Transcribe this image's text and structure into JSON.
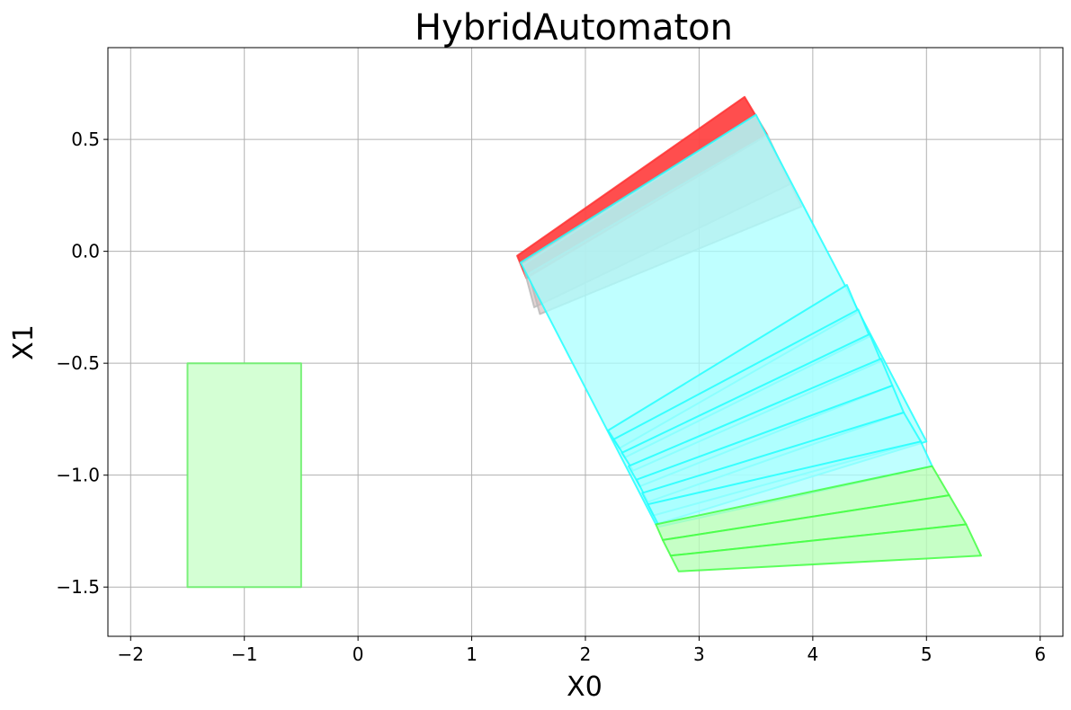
{
  "chart_data": {
    "type": "polygon",
    "title": "HybridAutomaton",
    "xlabel": "X0",
    "ylabel": "X1",
    "xlim": [
      -2.2,
      6.2
    ],
    "ylim": [
      -1.72,
      0.91
    ],
    "grid": true,
    "xticks": [
      -2,
      -1,
      0,
      1,
      2,
      3,
      4,
      5,
      6
    ],
    "xtick_labels": [
      "−2",
      "−1",
      "0",
      "1",
      "2",
      "3",
      "4",
      "5",
      "6"
    ],
    "yticks": [
      0.5,
      0.0,
      -0.5,
      -1.0,
      -1.5
    ],
    "ytick_labels": [
      "0.5",
      "0.0",
      "−0.5",
      "−1.0",
      "−1.5"
    ],
    "colors": {
      "initial": "#33cc33",
      "initial_fill": "#d4ffd4",
      "red": "#ff4444",
      "cyan": "#22ffff",
      "cyan_fill": "#aaffff",
      "green": "#44ff44"
    },
    "series": [
      {
        "role": "initial-set",
        "color": "#66ee66",
        "fill": "#d4ffd4",
        "fill_opacity": 1,
        "polygons": [
          [
            [
              -1.5,
              -0.5
            ],
            [
              -0.5,
              -0.5
            ],
            [
              -0.5,
              -1.5
            ],
            [
              -1.5,
              -1.5
            ]
          ]
        ]
      },
      {
        "role": "red-reach",
        "color": "#ff3333",
        "fill": "#ff4444",
        "fill_opacity": 0.95,
        "polygons": [
          [
            [
              1.4,
              -0.02
            ],
            [
              3.4,
              0.69
            ],
            [
              3.6,
              0.52
            ],
            [
              1.48,
              -0.12
            ]
          ]
        ]
      },
      {
        "role": "gray-reach",
        "color": "#bbbbbb",
        "fill": "#d0b8b8",
        "fill_opacity": 0.6,
        "polygons": [
          [
            [
              1.45,
              -0.06
            ],
            [
              3.5,
              0.61
            ],
            [
              3.8,
              0.3
            ],
            [
              1.55,
              -0.25
            ]
          ],
          [
            [
              1.5,
              -0.1
            ],
            [
              3.6,
              0.52
            ],
            [
              3.9,
              0.2
            ],
            [
              1.6,
              -0.28
            ]
          ]
        ]
      },
      {
        "role": "cyan-reach",
        "color": "#22ffff",
        "fill": "#aaffff",
        "fill_opacity": 0.75,
        "polygons": [
          [
            [
              1.43,
              -0.05
            ],
            [
              3.5,
              0.61
            ],
            [
              5.0,
              -0.85
            ],
            [
              2.62,
              -1.22
            ]
          ],
          [
            [
              2.2,
              -0.8
            ],
            [
              4.3,
              -0.15
            ],
            [
              4.4,
              -0.27
            ],
            [
              2.3,
              -0.88
            ]
          ],
          [
            [
              2.25,
              -0.84
            ],
            [
              4.4,
              -0.26
            ],
            [
              4.5,
              -0.38
            ],
            [
              2.35,
              -0.92
            ]
          ],
          [
            [
              2.32,
              -0.9
            ],
            [
              4.5,
              -0.37
            ],
            [
              4.6,
              -0.49
            ],
            [
              2.42,
              -0.98
            ]
          ],
          [
            [
              2.38,
              -0.96
            ],
            [
              4.6,
              -0.48
            ],
            [
              4.7,
              -0.6
            ],
            [
              2.48,
              -1.05
            ]
          ],
          [
            [
              2.45,
              -1.02
            ],
            [
              4.7,
              -0.6
            ],
            [
              4.8,
              -0.72
            ],
            [
              2.55,
              -1.12
            ]
          ],
          [
            [
              2.5,
              -1.08
            ],
            [
              4.8,
              -0.72
            ],
            [
              4.95,
              -0.85
            ],
            [
              2.6,
              -1.18
            ]
          ],
          [
            [
              2.55,
              -1.13
            ],
            [
              4.95,
              -0.85
            ],
            [
              5.05,
              -0.96
            ],
            [
              2.65,
              -1.23
            ]
          ]
        ]
      },
      {
        "role": "green-reach",
        "color": "#44ff44",
        "fill": "#b8ffb8",
        "fill_opacity": 0.8,
        "polygons": [
          [
            [
              2.62,
              -1.22
            ],
            [
              5.05,
              -0.96
            ],
            [
              5.2,
              -1.09
            ],
            [
              2.68,
              -1.29
            ]
          ],
          [
            [
              2.68,
              -1.29
            ],
            [
              5.2,
              -1.09
            ],
            [
              5.35,
              -1.22
            ],
            [
              2.75,
              -1.36
            ]
          ],
          [
            [
              2.75,
              -1.36
            ],
            [
              5.35,
              -1.22
            ],
            [
              5.48,
              -1.36
            ],
            [
              2.82,
              -1.43
            ]
          ]
        ]
      }
    ]
  }
}
